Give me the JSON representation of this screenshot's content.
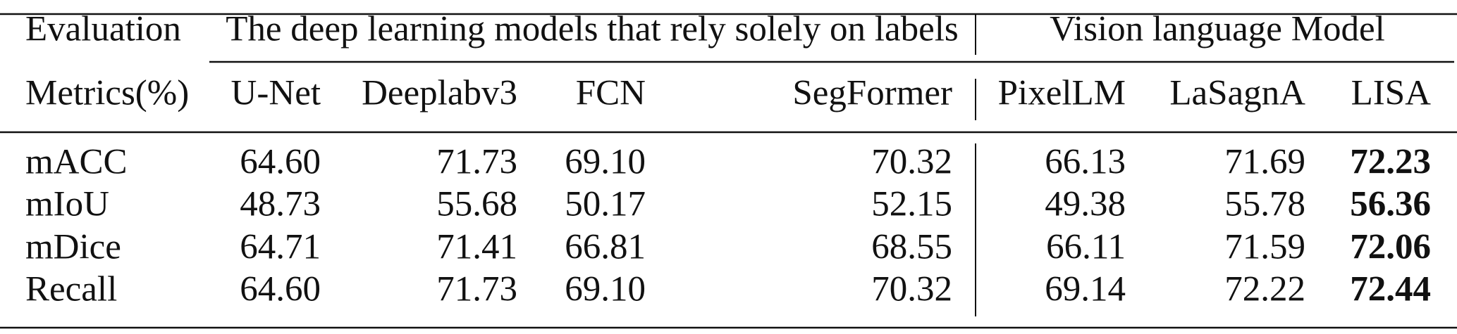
{
  "table": {
    "header": {
      "metric_line1": "Evaluation",
      "metric_line2": "Metrics(%)",
      "groups": [
        "The deep learning models that rely solely on labels",
        "Vision language Model"
      ],
      "columns": [
        "U-Net",
        "Deeplabv3",
        "FCN",
        "SegFormer",
        "PixelLM",
        "LaSagnA",
        "LISA"
      ]
    },
    "rows": [
      {
        "metric": "mACC",
        "values": [
          "64.60",
          "71.73",
          "69.10",
          "70.32",
          "66.13",
          "71.69",
          "72.23"
        ]
      },
      {
        "metric": "mIoU",
        "values": [
          "48.73",
          "55.68",
          "50.17",
          "52.15",
          "49.38",
          "55.78",
          "56.36"
        ]
      },
      {
        "metric": "mDice",
        "values": [
          "64.71",
          "71.41",
          "66.81",
          "68.55",
          "66.11",
          "71.59",
          "72.06"
        ]
      },
      {
        "metric": "Recall",
        "values": [
          "64.60",
          "71.73",
          "69.10",
          "70.32",
          "69.14",
          "72.22",
          "72.44"
        ]
      }
    ]
  }
}
